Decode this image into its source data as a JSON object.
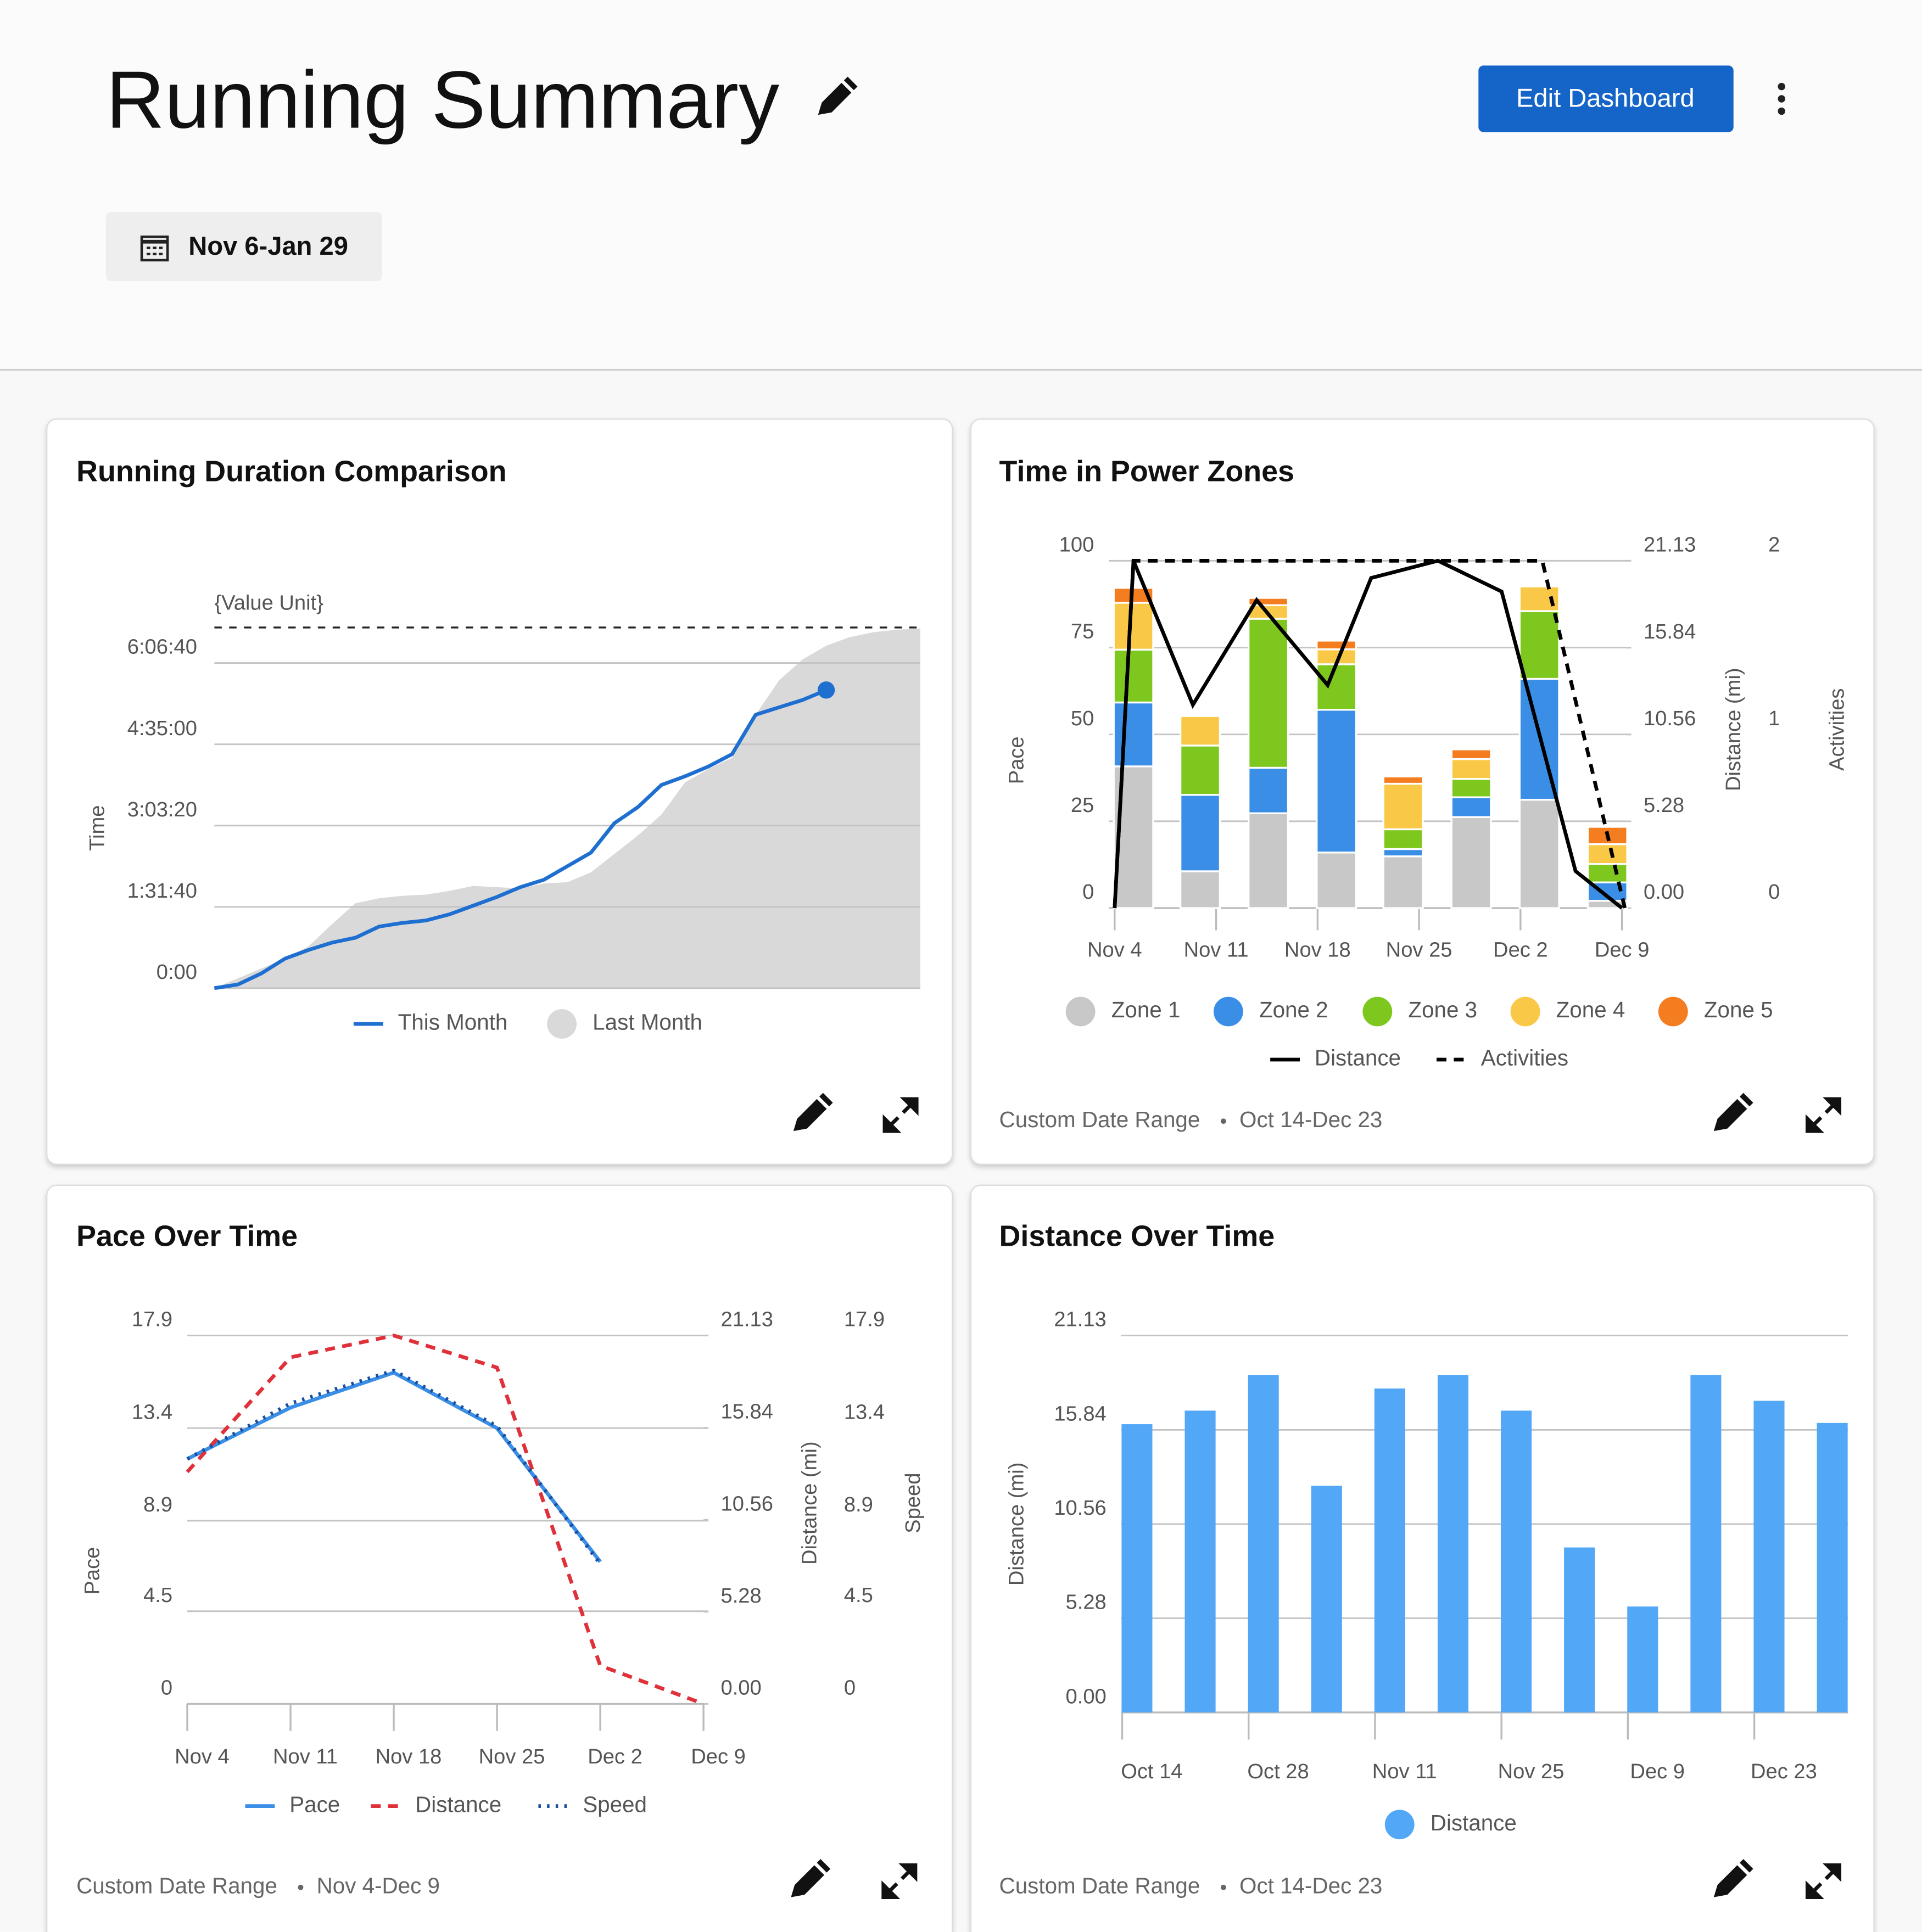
{
  "header": {
    "title": "Running Summary",
    "button": "Edit Dashboard",
    "date_range": "Nov 6-Jan 29"
  },
  "chart_data": [
    {
      "type": "area",
      "title": "Running Duration Comparison",
      "ylabel": "Time",
      "reference_line": {
        "label": "{Value Unit}",
        "value": 24400
      },
      "categories": [
        null,
        null,
        null,
        null,
        null,
        null,
        null,
        null,
        null,
        null,
        null,
        null,
        null,
        null,
        null,
        null,
        null,
        null,
        null,
        null,
        null,
        null,
        null,
        null,
        null,
        null,
        null,
        null,
        null,
        null,
        null
      ],
      "series": [
        {
          "name": "This Month",
          "color": "#1f6fd1",
          "kind": "line",
          "values": [
            0,
            250,
            1000,
            2000,
            2580,
            3080,
            3420,
            4170,
            4420,
            4580,
            5000,
            5580,
            6170,
            6830,
            7330,
            8250,
            9170,
            11170,
            12250,
            13750,
            14330,
            15000,
            15830,
            18500,
            19000,
            19500,
            20170,
            null,
            null,
            null,
            null
          ]
        },
        {
          "name": "Last Month",
          "color": "#d9d9d9",
          "kind": "area",
          "values": [
            0,
            670,
            1330,
            2000,
            2830,
            4330,
            5750,
            6080,
            6250,
            6330,
            6580,
            6920,
            6830,
            6750,
            7080,
            7170,
            7830,
            9080,
            10330,
            11750,
            13920,
            14830,
            15580,
            18500,
            20830,
            22250,
            23170,
            23750,
            24080,
            24250,
            24330
          ]
        }
      ],
      "ylim": [
        0,
        24500
      ],
      "yticks": [
        {
          "value": 0,
          "label": "0:00"
        },
        {
          "value": 5500,
          "label": "1:31:40"
        },
        {
          "value": 11000,
          "label": "3:03:20"
        },
        {
          "value": 16500,
          "label": "4:35:00"
        },
        {
          "value": 22000,
          "label": "6:06:40"
        }
      ]
    },
    {
      "type": "combo",
      "title": "Time in Power Zones",
      "ylabel": "Pace",
      "y2label": "Distance (mi)",
      "y3label": "Activities",
      "x": [
        1.3,
        5.9,
        10.6,
        15.3,
        19.9,
        24.6,
        29.3,
        34.0
      ],
      "xlim": [
        -0.4,
        35.3
      ],
      "xticks": [
        {
          "value": 0,
          "label": "Nov 4"
        },
        {
          "value": 7,
          "label": "Nov 11"
        },
        {
          "value": 14,
          "label": "Nov 18"
        },
        {
          "value": 21,
          "label": "Nov 25"
        },
        {
          "value": 28,
          "label": "Dec 2"
        },
        {
          "value": 35,
          "label": "Dec 9"
        }
      ],
      "series": [
        {
          "name": "Zone 1",
          "color": "#c8c8c8",
          "kind": "bar",
          "values": [
            40.8,
            10.6,
            27.3,
            16.0,
            14.9,
            26.2,
            31.2,
            2.1
          ]
        },
        {
          "name": "Zone 2",
          "color": "#3a8ee6",
          "kind": "bar",
          "values": [
            18.4,
            22.0,
            13.1,
            41.1,
            2.1,
            5.7,
            34.8,
            5.3
          ]
        },
        {
          "name": "Zone 3",
          "color": "#7dc71f",
          "kind": "bar",
          "values": [
            15.2,
            14.2,
            42.9,
            13.1,
            5.7,
            5.3,
            19.5,
            5.3
          ]
        },
        {
          "name": "Zone 4",
          "color": "#f9c846",
          "kind": "bar",
          "values": [
            13.5,
            8.5,
            3.9,
            4.3,
            13.1,
            5.7,
            7.1,
            5.7
          ]
        },
        {
          "name": "Zone 5",
          "color": "#f47d20",
          "kind": "bar",
          "values": [
            4.3,
            0,
            2.1,
            2.5,
            2.1,
            2.8,
            0,
            5.0
          ]
        },
        {
          "name": "Distance",
          "color": "#000000",
          "kind": "line",
          "style": "solid",
          "axis": "y2",
          "x": [
            0,
            1.3,
            5.4,
            9.8,
            14.7,
            17.7,
            22.3,
            26.7,
            31.8,
            35.0
          ],
          "values": [
            0,
            21.13,
            12.36,
            18.73,
            13.56,
            20.08,
            21.13,
            19.26,
            2.25,
            0
          ]
        },
        {
          "name": "Activities",
          "color": "#000000",
          "kind": "line",
          "style": "dashed",
          "axis": "y3",
          "x": [
            0,
            1.3,
            29.5,
            35.2
          ],
          "values": [
            0,
            2,
            2,
            0
          ]
        }
      ],
      "ylim": [
        0,
        100
      ],
      "yticks": [
        0,
        25,
        50,
        75,
        100
      ],
      "y2lim": [
        0,
        21.13
      ],
      "y2ticks": [
        {
          "value": 0,
          "label": "0.00"
        },
        5.28,
        10.56,
        15.84,
        21.13
      ],
      "y3lim": [
        0,
        2
      ],
      "y3ticks": [
        0,
        1,
        2
      ],
      "footer": [
        "Custom Date Range",
        "Oct 14-Dec 23"
      ]
    },
    {
      "type": "line",
      "title": "Pace Over Time",
      "ylabel": "Pace",
      "y2label": "Distance (mi)",
      "y3label": "Speed",
      "categories": [
        "Nov 4",
        "Nov 11",
        "Nov 18",
        "Nov 25",
        "Dec 2",
        "Dec 9"
      ],
      "series": [
        {
          "name": "Pace",
          "color": "#3a8ee6",
          "style": "solid",
          "axis": "y",
          "values": [
            11.9,
            14.4,
            16.1,
            13.4,
            6.9,
            null
          ]
        },
        {
          "name": "Distance",
          "color": "#e0303a",
          "style": "dashed",
          "axis": "y2",
          "values": [
            13.31,
            19.88,
            21.13,
            19.29,
            2.19,
            0
          ]
        },
        {
          "name": "Speed",
          "color": "#1a4fa0",
          "style": "dotted",
          "axis": "y3",
          "values": [
            11.9,
            14.6,
            16.2,
            13.5,
            6.8,
            null
          ]
        }
      ],
      "ylim": [
        0,
        17.9
      ],
      "yticks": [
        0,
        4.5,
        8.9,
        13.4,
        17.9
      ],
      "y2lim": [
        0,
        21.13
      ],
      "y2ticks": [
        {
          "value": 0,
          "label": "0.00"
        },
        5.28,
        10.56,
        15.84,
        21.13
      ],
      "y3lim": [
        0,
        17.9
      ],
      "y3ticks": [
        0,
        4.5,
        8.9,
        13.4,
        17.9
      ],
      "footer": [
        "Custom Date Range",
        "Nov 4-Dec 9"
      ]
    },
    {
      "type": "bar",
      "title": "Distance Over Time",
      "ylabel": "Distance (mi)",
      "categories": [
        "Oct 14",
        null,
        "Oct 28",
        null,
        "Nov 11",
        null,
        "Nov 25",
        null,
        "Dec 9",
        null,
        "Dec 23",
        null
      ],
      "series": [
        {
          "name": "Distance",
          "color": "#52a7f7",
          "values": [
            16.16,
            16.92,
            18.92,
            12.71,
            18.16,
            18.92,
            16.92,
            9.25,
            5.94,
            18.92,
            17.47,
            16.23
          ]
        }
      ],
      "ylim": [
        0,
        21.13
      ],
      "yticks": [
        {
          "value": 0,
          "label": "0.00"
        },
        5.28,
        10.56,
        15.84,
        21.13
      ],
      "footer": [
        "Custom Date Range",
        "Oct 14-Dec 23"
      ]
    }
  ]
}
